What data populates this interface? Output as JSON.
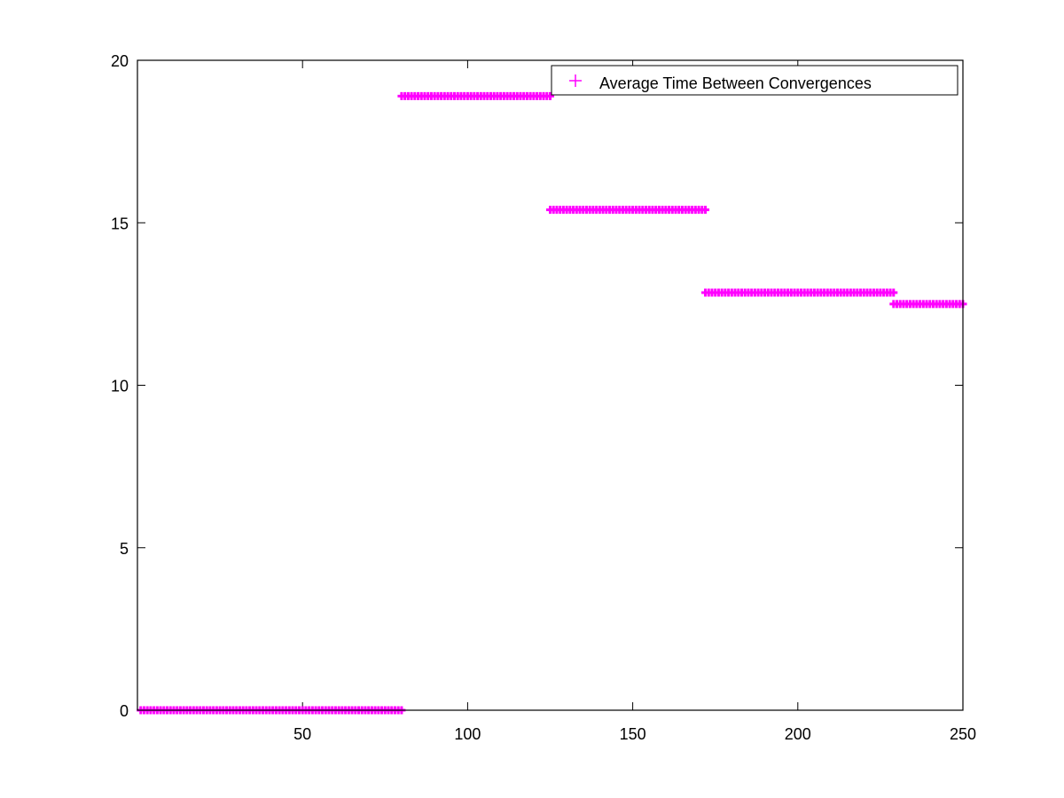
{
  "chart_data": {
    "type": "scatter",
    "title": "",
    "xlabel": "",
    "ylabel": "",
    "xlim": [
      0,
      250
    ],
    "ylim": [
      0,
      20
    ],
    "x_ticks": [
      50,
      100,
      150,
      200,
      250
    ],
    "y_ticks": [
      0,
      5,
      10,
      15,
      20
    ],
    "grid": false,
    "legend_position": "top-right",
    "series": [
      {
        "name": "Average Time Between Convergences",
        "marker": "+",
        "color": "#ff00ff",
        "segments": [
          {
            "x_start": 1,
            "x_end": 80,
            "y": 0
          },
          {
            "x_start": 80,
            "x_end": 125,
            "y": 18.9
          },
          {
            "x_start": 125,
            "x_end": 172,
            "y": 15.4
          },
          {
            "x_start": 172,
            "x_end": 229,
            "y": 12.85
          },
          {
            "x_start": 229,
            "x_end": 250,
            "y": 12.5
          }
        ]
      }
    ]
  }
}
